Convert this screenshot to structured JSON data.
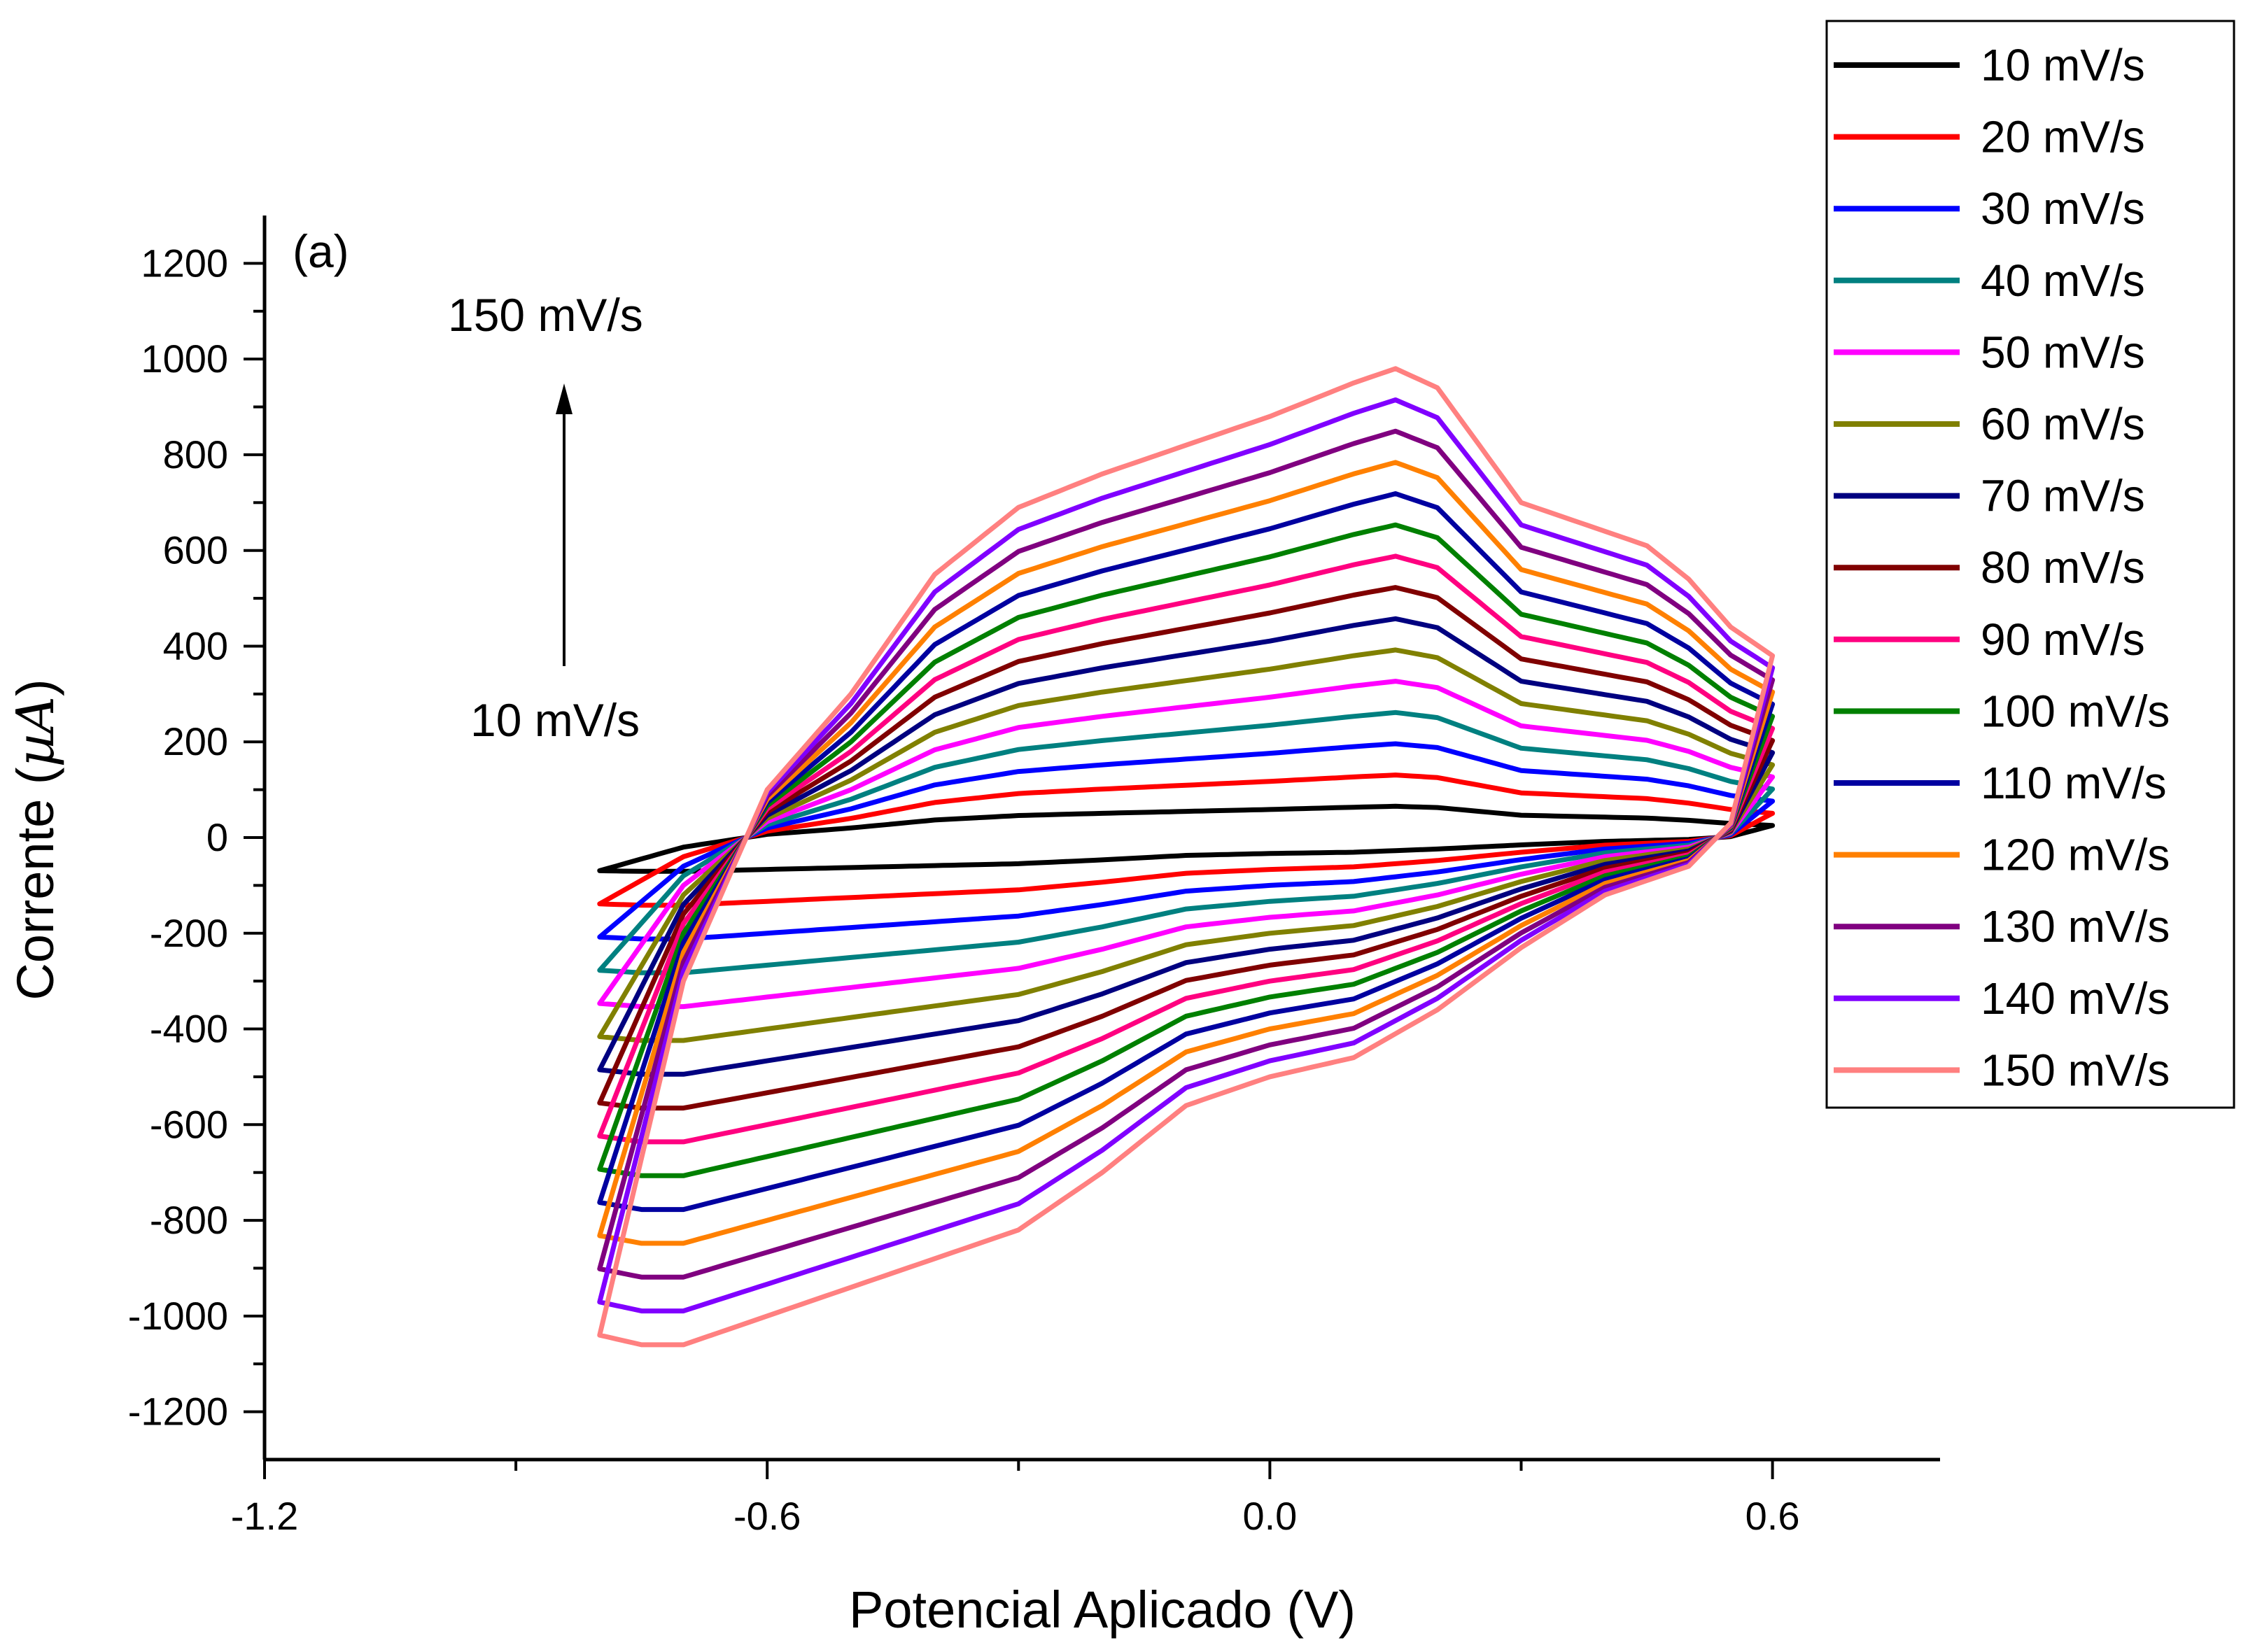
{
  "chart_data": {
    "type": "line",
    "title": "",
    "panel_label": "(a)",
    "xlabel": "Potencial Aplicado (V)",
    "ylabel_main": "Corrente (",
    "ylabel_unit": "µA",
    "ylabel_close": ")",
    "xlim": [
      -1.2,
      0.8
    ],
    "ylim": [
      -1300,
      1300
    ],
    "xticks": [
      -1.2,
      -0.6,
      0.0,
      0.6
    ],
    "xtick_labels": [
      "-1.2",
      "-0.6",
      "0.0",
      "0.6"
    ],
    "yticks": [
      1200,
      1000,
      800,
      600,
      400,
      200,
      0,
      -200,
      -400,
      -600,
      -800,
      -1000,
      -1200
    ],
    "ytick_labels": [
      "1200",
      "1000",
      "800",
      "600",
      "400",
      "200",
      "0",
      "-200",
      "-400",
      "-600",
      "-800",
      "-1000",
      "-1200"
    ],
    "annotations": {
      "top": "150 mV/s",
      "bottom": "10 mV/s"
    },
    "legend_position": "top-right outside",
    "series": [
      {
        "name": "10 mV/s",
        "color": "#000000",
        "scale": 1
      },
      {
        "name": "20 mV/s",
        "color": "#ff0000",
        "scale": 2
      },
      {
        "name": "30 mV/s",
        "color": "#0000ff",
        "scale": 3
      },
      {
        "name": "40 mV/s",
        "color": "#008080",
        "scale": 4
      },
      {
        "name": "50 mV/s",
        "color": "#ff00ff",
        "scale": 5
      },
      {
        "name": "60 mV/s",
        "color": "#808000",
        "scale": 6
      },
      {
        "name": "70 mV/s",
        "color": "#000080",
        "scale": 7
      },
      {
        "name": "80 mV/s",
        "color": "#800000",
        "scale": 8
      },
      {
        "name": "90 mV/s",
        "color": "#ff0080",
        "scale": 9
      },
      {
        "name": "100 mV/s",
        "color": "#008000",
        "scale": 10
      },
      {
        "name": "110 mV/s",
        "color": "#0000a0",
        "scale": 11
      },
      {
        "name": "120 mV/s",
        "color": "#ff8000",
        "scale": 12
      },
      {
        "name": "130 mV/s",
        "color": "#800080",
        "scale": 13
      },
      {
        "name": "140 mV/s",
        "color": "#8000ff",
        "scale": 14
      },
      {
        "name": "150 mV/s",
        "color": "#ff8080",
        "scale": 15
      }
    ],
    "anodic_reference_150": {
      "x": [
        -0.8,
        -0.7,
        -0.6,
        -0.5,
        -0.4,
        -0.3,
        -0.2,
        -0.1,
        0.0,
        0.1,
        0.15,
        0.2,
        0.3,
        0.4,
        0.45,
        0.5,
        0.55,
        0.6
      ],
      "y": [
        -1040,
        -300,
        100,
        300,
        550,
        690,
        760,
        820,
        880,
        950,
        980,
        940,
        700,
        640,
        610,
        540,
        440,
        380
      ]
    },
    "cathodic_reference_150": {
      "x": [
        0.6,
        0.55,
        0.5,
        0.4,
        0.3,
        0.2,
        0.1,
        0.0,
        -0.1,
        -0.2,
        -0.3,
        -0.4,
        -0.5,
        -0.6,
        -0.7,
        -0.75,
        -0.8
      ],
      "y": [
        380,
        30,
        -60,
        -120,
        -230,
        -360,
        -460,
        -500,
        -560,
        -700,
        -820,
        -880,
        -940,
        -1000,
        -1060,
        -1060,
        -1040
      ]
    }
  }
}
